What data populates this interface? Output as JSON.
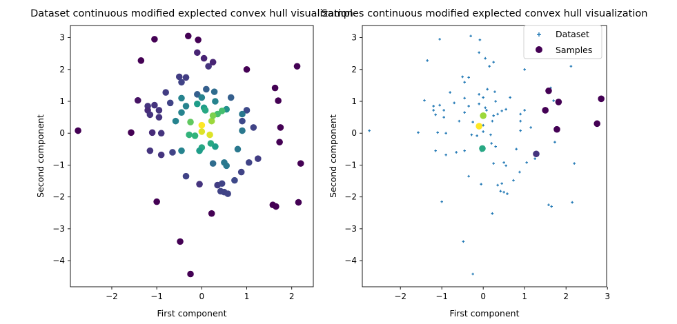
{
  "chart_data": [
    {
      "type": "scatter",
      "title": "Dataset continuous modified explected convex hull visualization",
      "xlabel": "First component",
      "ylabel": "Second component",
      "xlim": [
        -2.92,
        2.48
      ],
      "ylim": [
        -4.82,
        3.38
      ],
      "xticks": [
        -2,
        -1,
        0,
        1,
        2
      ],
      "yticks": [
        -4,
        -3,
        -2,
        -1,
        0,
        1,
        2,
        3
      ],
      "legend": null,
      "colormap": "viridis",
      "color_scale": "depth (0 = outer hull, 1 = innermost)",
      "series": [
        {
          "name": "",
          "points": [
            [
              -2.75,
              0.08,
              0.0
            ],
            [
              -1.05,
              2.95,
              0.0
            ],
            [
              -0.3,
              3.05,
              0.0
            ],
            [
              -0.08,
              2.93,
              0.0
            ],
            [
              -1.35,
              2.28,
              0.0
            ],
            [
              -0.1,
              2.53,
              0.1
            ],
            [
              0.05,
              2.35,
              0.1
            ],
            [
              0.15,
              2.1,
              0.15
            ],
            [
              0.25,
              2.23,
              0.1
            ],
            [
              1.0,
              2.0,
              0.0
            ],
            [
              2.12,
              2.1,
              0.0
            ],
            [
              1.63,
              1.42,
              0.0
            ],
            [
              1.7,
              1.02,
              0.0
            ],
            [
              1.75,
              0.18,
              0.0
            ],
            [
              1.73,
              -0.28,
              0.0
            ],
            [
              2.2,
              -0.95,
              0.0
            ],
            [
              2.15,
              -2.17,
              0.0
            ],
            [
              1.58,
              -2.25,
              0.0
            ],
            [
              1.65,
              -2.3,
              0.0
            ],
            [
              0.22,
              -2.52,
              0.0
            ],
            [
              -0.48,
              -3.4,
              0.0
            ],
            [
              -0.25,
              -4.42,
              0.0
            ],
            [
              -1.0,
              -2.15,
              0.0
            ],
            [
              -1.57,
              0.02,
              0.0
            ],
            [
              -1.42,
              1.03,
              0.05
            ],
            [
              -0.5,
              1.77,
              0.18
            ],
            [
              -0.35,
              1.75,
              0.18
            ],
            [
              -0.45,
              1.6,
              0.2
            ],
            [
              -0.8,
              1.28,
              0.18
            ],
            [
              -0.7,
              0.95,
              0.2
            ],
            [
              -1.05,
              0.88,
              0.15
            ],
            [
              -1.2,
              0.85,
              0.15
            ],
            [
              -1.2,
              0.72,
              0.12
            ],
            [
              -0.95,
              0.72,
              0.15
            ],
            [
              -1.15,
              0.58,
              0.15
            ],
            [
              -0.95,
              0.5,
              0.15
            ],
            [
              -1.1,
              0.02,
              0.12
            ],
            [
              -0.9,
              0.0,
              0.15
            ],
            [
              -1.15,
              -0.55,
              0.15
            ],
            [
              -0.9,
              -0.68,
              0.15
            ],
            [
              -0.65,
              -0.6,
              0.2
            ],
            [
              -0.35,
              -1.35,
              0.2
            ],
            [
              -0.05,
              -1.6,
              0.15
            ],
            [
              0.35,
              -1.63,
              0.18
            ],
            [
              0.45,
              -1.58,
              0.2
            ],
            [
              0.42,
              -1.82,
              0.2
            ],
            [
              0.5,
              -1.85,
              0.2
            ],
            [
              0.58,
              -1.9,
              0.2
            ],
            [
              0.73,
              -1.48,
              0.22
            ],
            [
              0.88,
              -1.22,
              0.2
            ],
            [
              1.05,
              -0.92,
              0.2
            ],
            [
              1.25,
              -0.8,
              0.18
            ],
            [
              1.15,
              0.18,
              0.2
            ],
            [
              0.9,
              0.38,
              0.22
            ],
            [
              1.0,
              0.72,
              0.22
            ],
            [
              0.65,
              1.12,
              0.3
            ],
            [
              0.28,
              1.3,
              0.35
            ],
            [
              0.1,
              1.38,
              0.3
            ],
            [
              -0.1,
              1.22,
              0.3
            ],
            [
              0.0,
              1.12,
              0.45
            ],
            [
              -0.45,
              1.1,
              0.45
            ],
            [
              -0.35,
              0.85,
              0.45
            ],
            [
              -0.58,
              0.38,
              0.45
            ],
            [
              -0.45,
              0.65,
              0.45
            ],
            [
              -0.45,
              -0.55,
              0.45
            ],
            [
              0.25,
              -0.95,
              0.35
            ],
            [
              0.5,
              -0.92,
              0.4
            ],
            [
              0.55,
              -1.02,
              0.4
            ],
            [
              0.8,
              -0.5,
              0.4
            ],
            [
              0.9,
              0.08,
              0.4
            ],
            [
              0.9,
              0.6,
              0.4
            ],
            [
              0.55,
              0.75,
              0.5
            ],
            [
              0.3,
              1.0,
              0.45
            ],
            [
              -0.1,
              0.92,
              0.55
            ],
            [
              0.05,
              0.8,
              0.55
            ],
            [
              0.08,
              0.72,
              0.6
            ],
            [
              -0.25,
              0.35,
              0.75
            ],
            [
              -0.28,
              -0.05,
              0.65
            ],
            [
              -0.15,
              -0.08,
              0.65
            ],
            [
              0.35,
              0.6,
              0.7
            ],
            [
              0.45,
              0.7,
              0.7
            ],
            [
              0.22,
              0.38,
              0.85
            ],
            [
              0.25,
              0.55,
              0.8
            ],
            [
              0.0,
              0.25,
              1.0
            ],
            [
              0.0,
              0.05,
              0.95
            ],
            [
              0.18,
              -0.05,
              0.95
            ],
            [
              0.3,
              -0.42,
              0.55
            ],
            [
              0.0,
              -0.45,
              0.6
            ],
            [
              -0.05,
              -0.55,
              0.55
            ],
            [
              0.2,
              -0.32,
              0.6
            ]
          ]
        }
      ]
    },
    {
      "type": "scatter",
      "title": "Samples continuous modified explected convex hull visualization",
      "xlabel": "First component",
      "ylabel": "Second component",
      "xlim": [
        -2.92,
        2.98
      ],
      "ylim": [
        -4.82,
        3.38
      ],
      "xticks": [
        -2,
        -1,
        0,
        1,
        2,
        3
      ],
      "yticks": [
        -4,
        -3,
        -2,
        -1,
        0,
        1,
        2,
        3
      ],
      "legend": {
        "position": "upper right",
        "entries": [
          "Dataset",
          "Samples"
        ]
      },
      "series": [
        {
          "name": "Dataset",
          "color": "#1f77b4",
          "marker": "small-plus",
          "points": [
            [
              -2.75,
              0.08
            ],
            [
              -1.05,
              2.95
            ],
            [
              -0.3,
              3.05
            ],
            [
              -0.08,
              2.93
            ],
            [
              -1.35,
              2.28
            ],
            [
              -0.1,
              2.53
            ],
            [
              0.05,
              2.35
            ],
            [
              0.15,
              2.1
            ],
            [
              0.25,
              2.23
            ],
            [
              1.0,
              2.0
            ],
            [
              2.12,
              2.1
            ],
            [
              1.63,
              1.42
            ],
            [
              1.7,
              1.02
            ],
            [
              1.75,
              0.18
            ],
            [
              1.73,
              -0.28
            ],
            [
              2.2,
              -0.95
            ],
            [
              2.15,
              -2.17
            ],
            [
              1.58,
              -2.25
            ],
            [
              1.65,
              -2.3
            ],
            [
              0.22,
              -2.52
            ],
            [
              -0.48,
              -3.4
            ],
            [
              -0.25,
              -4.42
            ],
            [
              -1.0,
              -2.15
            ],
            [
              -1.57,
              0.02
            ],
            [
              -1.42,
              1.03
            ],
            [
              -0.5,
              1.77
            ],
            [
              -0.35,
              1.75
            ],
            [
              -0.45,
              1.6
            ],
            [
              -0.8,
              1.28
            ],
            [
              -0.7,
              0.95
            ],
            [
              -1.05,
              0.88
            ],
            [
              -1.2,
              0.85
            ],
            [
              -1.2,
              0.72
            ],
            [
              -0.95,
              0.72
            ],
            [
              -1.15,
              0.58
            ],
            [
              -0.95,
              0.5
            ],
            [
              -1.1,
              0.02
            ],
            [
              -0.9,
              0.0
            ],
            [
              -1.15,
              -0.55
            ],
            [
              -0.9,
              -0.68
            ],
            [
              -0.65,
              -0.6
            ],
            [
              -0.35,
              -1.35
            ],
            [
              -0.05,
              -1.6
            ],
            [
              0.35,
              -1.63
            ],
            [
              0.45,
              -1.58
            ],
            [
              0.42,
              -1.82
            ],
            [
              0.5,
              -1.85
            ],
            [
              0.58,
              -1.9
            ],
            [
              0.73,
              -1.48
            ],
            [
              0.88,
              -1.22
            ],
            [
              1.05,
              -0.92
            ],
            [
              1.25,
              -0.8
            ],
            [
              1.15,
              0.18
            ],
            [
              0.9,
              0.38
            ],
            [
              1.0,
              0.72
            ],
            [
              0.65,
              1.12
            ],
            [
              0.28,
              1.3
            ],
            [
              0.1,
              1.38
            ],
            [
              -0.1,
              1.22
            ],
            [
              0.0,
              1.12
            ],
            [
              -0.45,
              1.1
            ],
            [
              -0.35,
              0.85
            ],
            [
              -0.58,
              0.38
            ],
            [
              -0.45,
              0.65
            ],
            [
              -0.45,
              -0.55
            ],
            [
              0.25,
              -0.95
            ],
            [
              0.5,
              -0.92
            ],
            [
              0.55,
              -1.02
            ],
            [
              0.8,
              -0.5
            ],
            [
              0.9,
              0.08
            ],
            [
              0.9,
              0.6
            ],
            [
              0.55,
              0.75
            ],
            [
              0.3,
              1.0
            ],
            [
              -0.1,
              0.92
            ],
            [
              0.05,
              0.8
            ],
            [
              0.08,
              0.72
            ],
            [
              -0.25,
              0.35
            ],
            [
              -0.28,
              -0.05
            ],
            [
              -0.15,
              -0.08
            ],
            [
              0.35,
              0.6
            ],
            [
              0.45,
              0.7
            ],
            [
              0.22,
              0.38
            ],
            [
              0.25,
              0.55
            ],
            [
              0.0,
              0.25
            ],
            [
              0.0,
              0.05
            ],
            [
              0.18,
              -0.05
            ],
            [
              0.3,
              -0.42
            ],
            [
              0.0,
              -0.45
            ],
            [
              -0.05,
              -0.55
            ],
            [
              0.2,
              -0.32
            ]
          ]
        },
        {
          "name": "Samples",
          "color": "#440154",
          "marker": "circle",
          "points": [
            [
              1.58,
              1.33,
              0.0
            ],
            [
              1.82,
              0.98,
              0.0
            ],
            [
              2.85,
              1.08,
              0.0
            ],
            [
              2.75,
              0.3,
              0.0
            ],
            [
              1.78,
              0.12,
              0.0
            ],
            [
              1.5,
              0.72,
              0.0
            ],
            [
              1.28,
              -0.65,
              0.15
            ],
            [
              -0.1,
              0.22,
              1.0
            ],
            [
              0.0,
              0.55,
              0.85
            ],
            [
              -0.02,
              -0.48,
              0.6
            ]
          ]
        }
      ]
    }
  ]
}
